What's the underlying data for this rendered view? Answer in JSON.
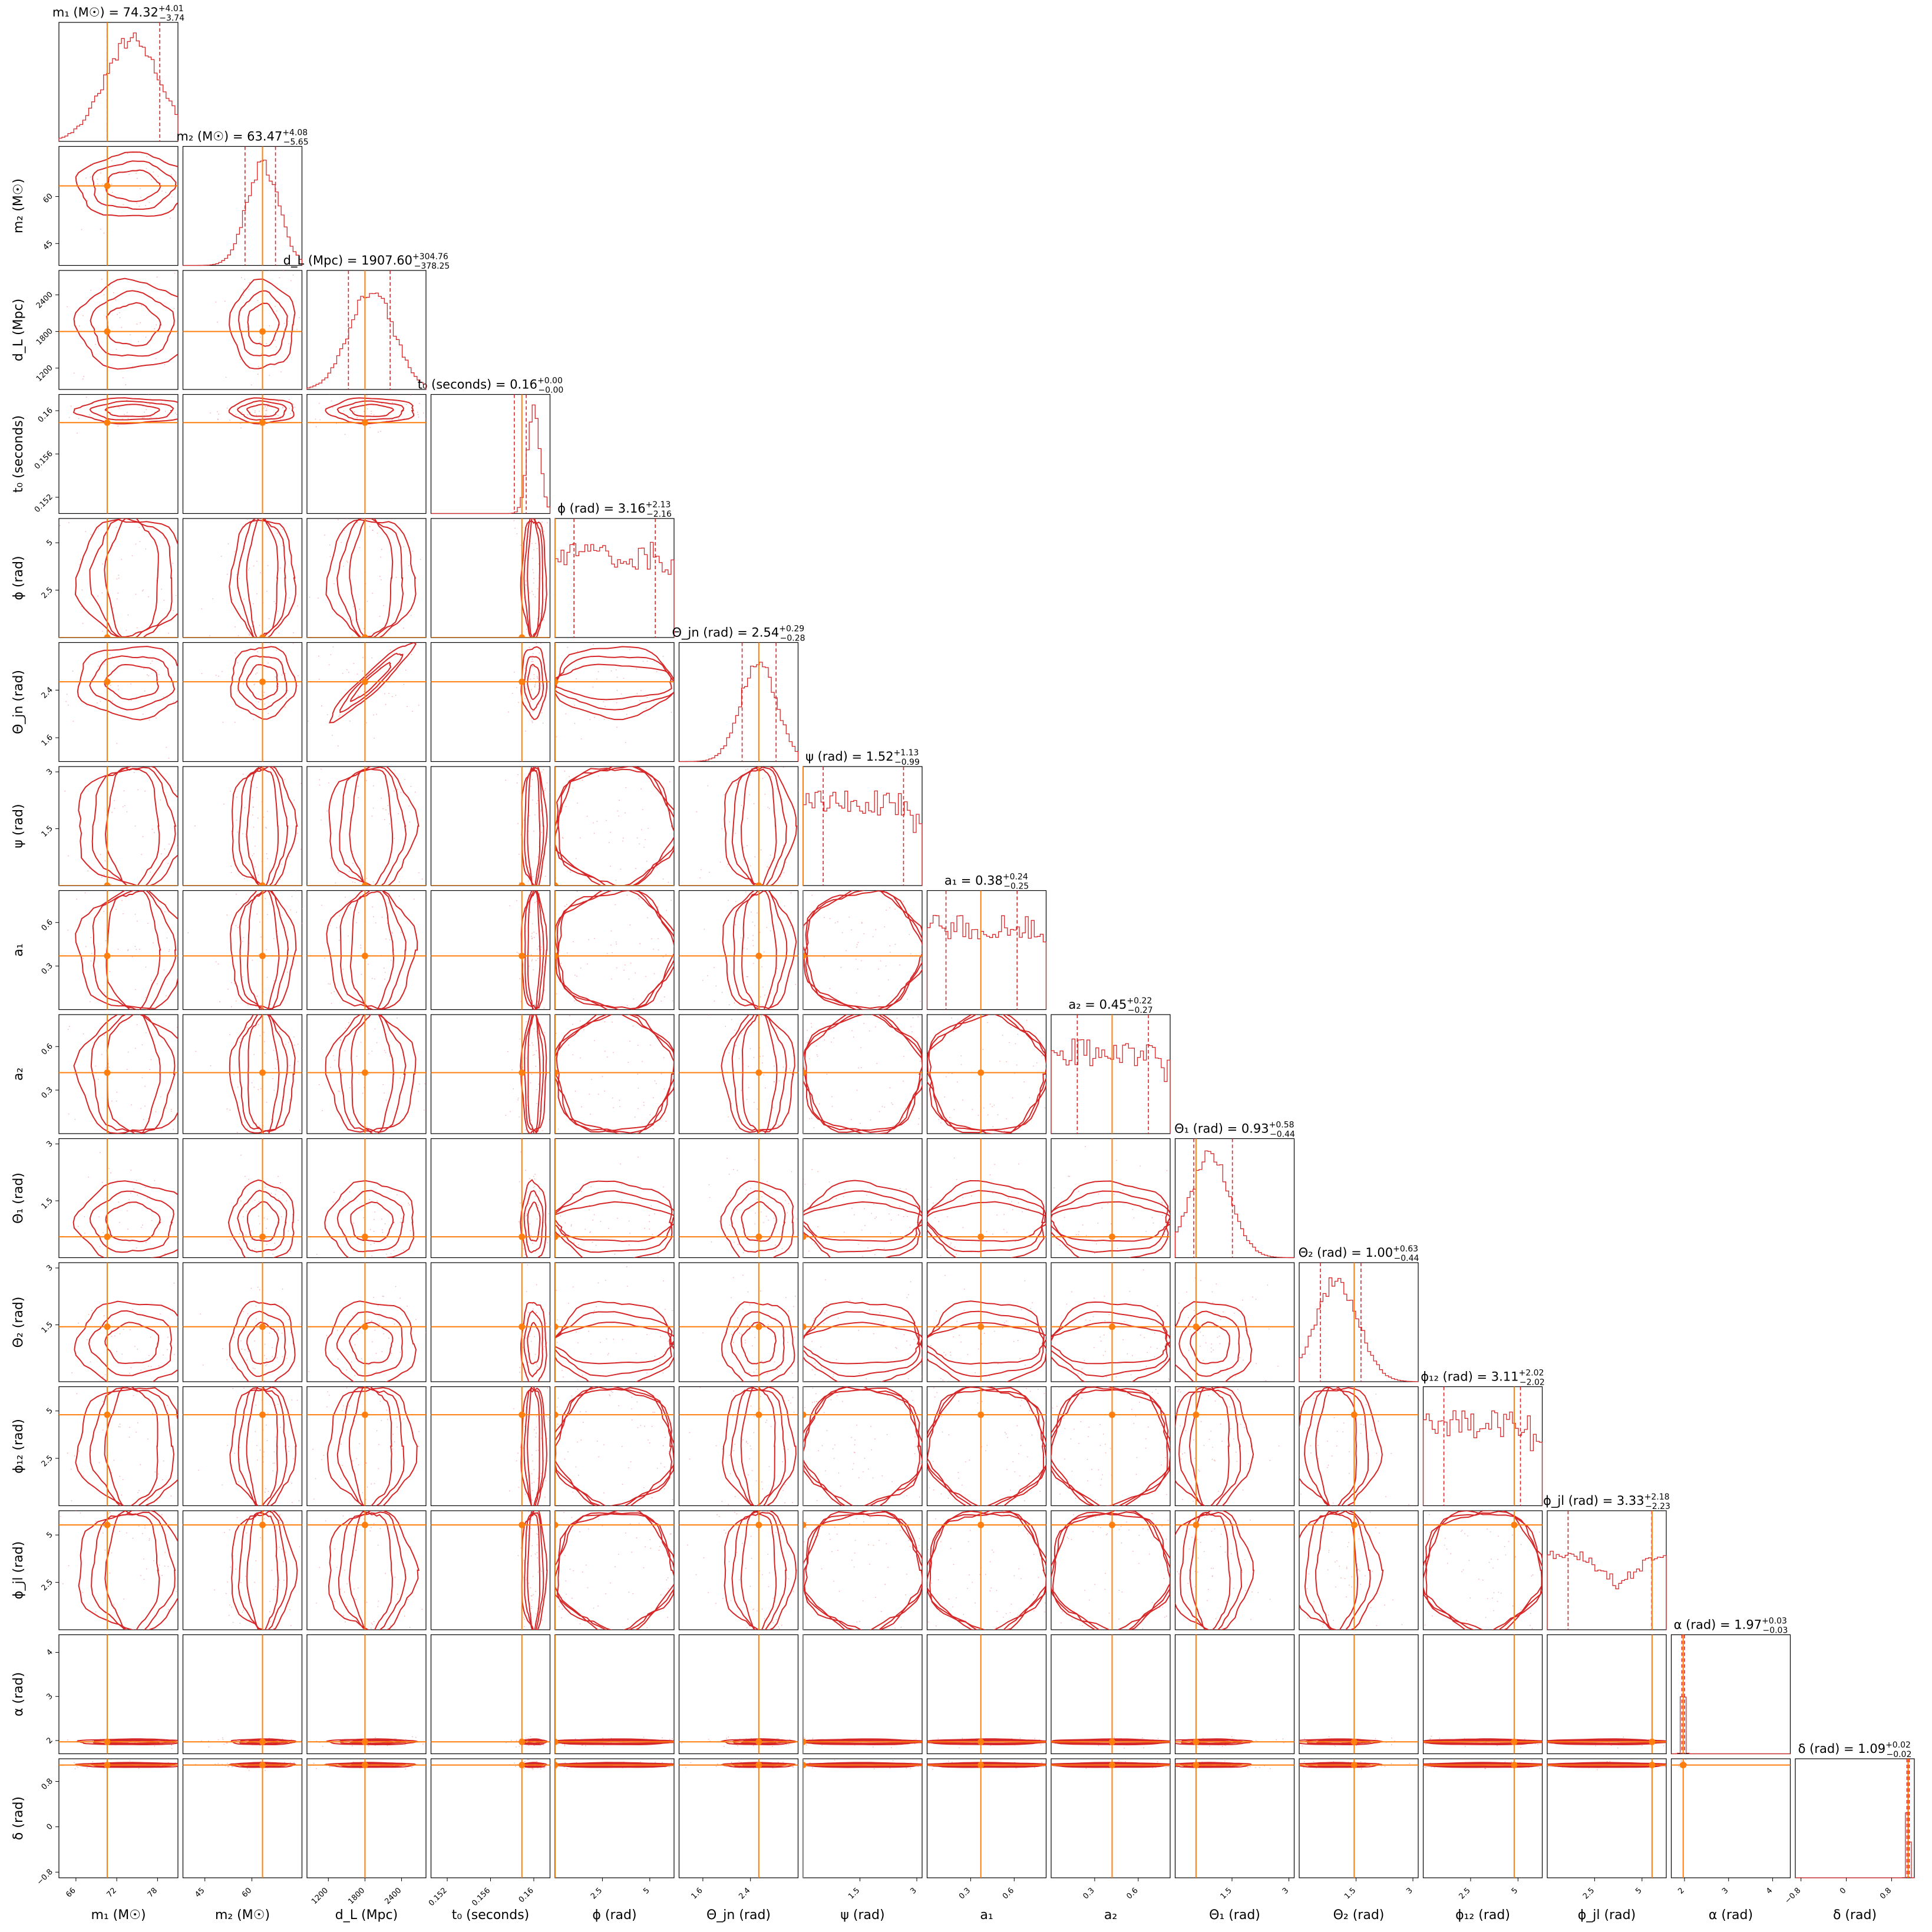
{
  "chart_data": {
    "type": "corner",
    "hist_color": "#d62728",
    "contour_color": "#d62728",
    "truth_color": "#ff7f0e",
    "frame_color": "#000000",
    "parameters": [
      {
        "key": "m1",
        "label": "m₁ (M☉)",
        "title": "m₁ (M☉) = 74.32",
        "median": 74.32,
        "err_plus": "+4.01",
        "err_minus": "−3.74",
        "range": [
          63.5,
          81.0
        ],
        "ticks": [
          66,
          72,
          78
        ],
        "truth": 70.6,
        "quantiles": [
          70.58,
          78.33
        ]
      },
      {
        "key": "m2",
        "label": "m₂ (M☉)",
        "title": "m₂ (M☉) = 63.47",
        "median": 63.47,
        "err_plus": "+4.08",
        "err_minus": "−5.65",
        "range": [
          38.0,
          76.0
        ],
        "ticks": [
          45,
          60
        ],
        "truth": 63.4,
        "quantiles": [
          57.82,
          67.55
        ]
      },
      {
        "key": "dL",
        "label": "d_L (Mpc)",
        "title": "d_L (Mpc) = 1907.60",
        "median": 1907.6,
        "err_plus": "+304.76",
        "err_minus": "−378.25",
        "range": [
          850,
          2800
        ],
        "ticks": [
          1200,
          1800,
          2400
        ],
        "truth": 1800,
        "quantiles": [
          1529.35,
          2212.36
        ]
      },
      {
        "key": "t0",
        "label": "t₀ (seconds)",
        "title": "t₀ (seconds) = 0.16",
        "median": 0.16,
        "err_plus": "+0.00",
        "err_minus": "−0.00",
        "range": [
          0.1505,
          0.1615
        ],
        "ticks": [
          0.152,
          0.156,
          0.16
        ],
        "truth": 0.1589,
        "quantiles": [
          0.1582,
          0.1593
        ]
      },
      {
        "key": "phi",
        "label": "ϕ (rad)",
        "title": "ϕ (rad) = 3.16",
        "median": 3.16,
        "err_plus": "+2.13",
        "err_minus": "−2.16",
        "range": [
          0.0,
          6.28
        ],
        "ticks": [
          2.5,
          5.0
        ],
        "truth": 0.0,
        "quantiles": [
          1.0,
          5.29
        ]
      },
      {
        "key": "theta_jn",
        "label": "Θ_jn (rad)",
        "title": "Θ_jn (rad) = 2.54",
        "median": 2.54,
        "err_plus": "+0.29",
        "err_minus": "−0.28",
        "range": [
          1.2,
          3.2
        ],
        "ticks": [
          1.6,
          2.4
        ],
        "truth": 2.54,
        "quantiles": [
          2.26,
          2.83
        ]
      },
      {
        "key": "psi",
        "label": "ψ (rad)",
        "title": "ψ (rad) = 1.52",
        "median": 1.52,
        "err_plus": "+1.13",
        "err_minus": "−0.99",
        "range": [
          0.0,
          3.14
        ],
        "ticks": [
          1.5,
          3.0
        ],
        "truth": 0.0,
        "quantiles": [
          0.53,
          2.65
        ]
      },
      {
        "key": "a1",
        "label": "a₁",
        "title": "a₁ = 0.38",
        "median": 0.38,
        "err_plus": "+0.24",
        "err_minus": "−0.25",
        "range": [
          0.0,
          0.82
        ],
        "ticks": [
          0.3,
          0.6
        ],
        "truth": 0.37,
        "quantiles": [
          0.13,
          0.62
        ]
      },
      {
        "key": "a2",
        "label": "a₂",
        "title": "a₂ = 0.45",
        "median": 0.45,
        "err_plus": "+0.22",
        "err_minus": "−0.27",
        "range": [
          0.0,
          0.82
        ],
        "ticks": [
          0.3,
          0.6
        ],
        "truth": 0.42,
        "quantiles": [
          0.18,
          0.67
        ]
      },
      {
        "key": "theta1",
        "label": "Θ₁ (rad)",
        "title": "Θ₁ (rad) = 0.93",
        "median": 0.93,
        "err_plus": "+0.58",
        "err_minus": "−0.44",
        "range": [
          0.0,
          3.14
        ],
        "ticks": [
          1.5,
          3.0
        ],
        "truth": 0.55,
        "quantiles": [
          0.49,
          1.51
        ]
      },
      {
        "key": "theta2",
        "label": "Θ₂ (rad)",
        "title": "Θ₂ (rad) = 1.00",
        "median": 1.0,
        "err_plus": "+0.63",
        "err_minus": "−0.44",
        "range": [
          0.0,
          3.14
        ],
        "ticks": [
          1.5,
          3.0
        ],
        "truth": 1.45,
        "quantiles": [
          0.56,
          1.63
        ]
      },
      {
        "key": "phi12",
        "label": "ϕ₁₂ (rad)",
        "title": "ϕ₁₂ (rad) = 3.11",
        "median": 3.11,
        "err_plus": "+2.02",
        "err_minus": "−2.02",
        "range": [
          0.0,
          6.28
        ],
        "ticks": [
          2.5,
          5.0
        ],
        "truth": 4.8,
        "quantiles": [
          1.09,
          5.13
        ]
      },
      {
        "key": "phijl",
        "label": "ϕ_jl (rad)",
        "title": "ϕ_jl (rad) = 3.33",
        "median": 3.33,
        "err_plus": "+2.18",
        "err_minus": "−2.23",
        "range": [
          0.0,
          6.28
        ],
        "ticks": [
          2.5,
          5.0
        ],
        "truth": 5.53,
        "quantiles": [
          1.1,
          5.51
        ]
      },
      {
        "key": "alpha",
        "label": "α (rad)",
        "title": "α (rad) = 1.97",
        "median": 1.97,
        "err_plus": "+0.03",
        "err_minus": "−0.03",
        "range": [
          1.7,
          4.4
        ],
        "ticks": [
          2,
          3,
          4
        ],
        "truth": 1.97,
        "quantiles": [
          1.94,
          2.0
        ]
      },
      {
        "key": "delta",
        "label": "δ (rad)",
        "title": "δ (rad) = 1.09",
        "median": 1.09,
        "err_plus": "+0.02",
        "err_minus": "−0.02",
        "range": [
          -0.9,
          1.2
        ],
        "ticks": [
          -0.8,
          0.0,
          0.8
        ],
        "truth": 1.09,
        "quantiles": [
          1.07,
          1.11
        ]
      }
    ]
  }
}
